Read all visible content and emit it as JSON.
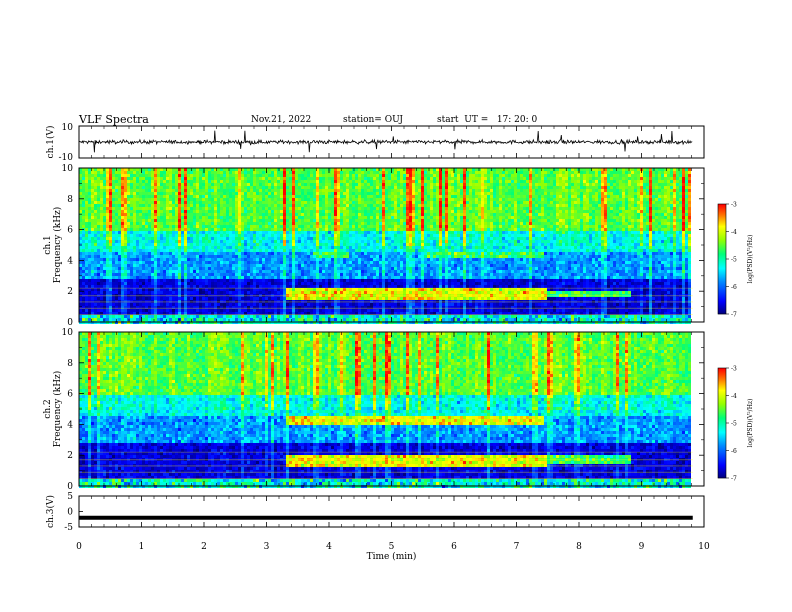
{
  "header": {
    "title": "VLF Spectra",
    "date": "Nov.21, 2022",
    "station": "station= OUJ",
    "start": "start  UT =   17: 20: 0"
  },
  "chart_data": [
    {
      "type": "line",
      "name": "ch1_waveform",
      "ylabel": "ch.1(V)",
      "ylim": [
        -10,
        10
      ],
      "yticks": [
        "10",
        "-10"
      ],
      "xlim": [
        0,
        10
      ],
      "description_values": {
        "baseline": 0,
        "noise_amplitude": 1.5,
        "impulse_max": 8,
        "data_end_min": 9.82
      }
    },
    {
      "type": "heatmap",
      "name": "ch1_spectrogram",
      "ylabel_lines": [
        "ch.1",
        "Frequency  (kHz)"
      ],
      "ylim": [
        0,
        10
      ],
      "yticks": [
        "0",
        "2",
        "4",
        "6",
        "8",
        "10"
      ],
      "xlim": [
        0,
        10
      ],
      "data_end_min": 9.82,
      "colorbar": {
        "label": "log(PSD)(V²/Hz)",
        "range": [
          -7,
          -3
        ],
        "ticks": [
          "-3",
          "-4",
          "-5",
          "-6",
          "-7"
        ]
      },
      "emission_bands": [
        {
          "t": [
            3.3,
            7.45
          ],
          "f": [
            1.4,
            2.2
          ],
          "level": "high"
        },
        {
          "t": [
            3.7,
            4.3
          ],
          "f": [
            4.1,
            4.5
          ],
          "level": "medium"
        },
        {
          "t": [
            5.5,
            7.4
          ],
          "f": [
            4.1,
            4.5
          ],
          "level": "medium"
        },
        {
          "t": [
            7.45,
            8.8
          ],
          "f": [
            1.6,
            2.0
          ],
          "level": "medium"
        }
      ]
    },
    {
      "type": "heatmap",
      "name": "ch2_spectrogram",
      "ylabel_lines": [
        "ch.2",
        "Frequency  (kHz)"
      ],
      "ylim": [
        0,
        10
      ],
      "yticks": [
        "0",
        "2",
        "4",
        "6",
        "8",
        "10"
      ],
      "xlim": [
        0,
        10
      ],
      "data_end_min": 9.82,
      "colorbar": {
        "label": "log(PSD)(V²/Hz)",
        "range": [
          -7,
          -3
        ],
        "ticks": [
          "-3",
          "-4",
          "-5",
          "-6",
          "-7"
        ]
      },
      "emission_bands": [
        {
          "t": [
            3.3,
            7.45
          ],
          "f": [
            1.2,
            2.1
          ],
          "level": "high"
        },
        {
          "t": [
            3.3,
            7.4
          ],
          "f": [
            4.0,
            4.6
          ],
          "level": "high"
        },
        {
          "t": [
            7.45,
            8.8
          ],
          "f": [
            1.5,
            2.0
          ],
          "level": "medium"
        }
      ]
    },
    {
      "type": "line",
      "name": "ch3_waveform",
      "ylabel": "ch.3(V)",
      "ylim": [
        -5,
        5
      ],
      "yticks": [
        "5",
        "0",
        "-5"
      ],
      "xlim": [
        0,
        10
      ],
      "xlabel": "Time  (min)",
      "xticks": [
        "0",
        "1",
        "2",
        "3",
        "4",
        "5",
        "6",
        "7",
        "8",
        "9",
        "10"
      ],
      "values": {
        "level": -2,
        "data_end_min": 9.82
      }
    }
  ],
  "colors": {
    "scale": [
      "#00007a",
      "#0000ff",
      "#0080ff",
      "#00ffff",
      "#00ff80",
      "#80ff00",
      "#ffff00",
      "#ff8000",
      "#ff0000"
    ]
  }
}
